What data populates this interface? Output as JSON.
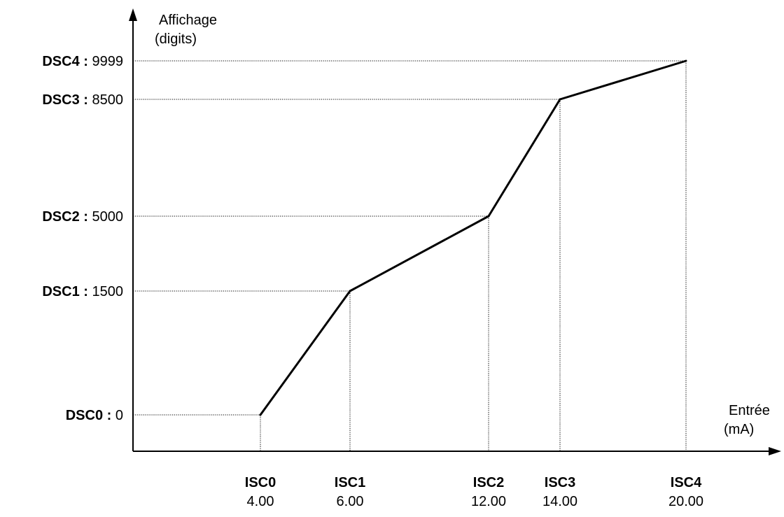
{
  "chart_data": {
    "type": "line",
    "ylabel": [
      "Affichage",
      "(digits)"
    ],
    "xlabel": [
      "Entrée",
      "(mA)"
    ],
    "points": [
      {
        "xname": "ISC0",
        "x": 4.0,
        "xtext": "4.00",
        "yname": "DSC0",
        "y": 0,
        "ytext": "0"
      },
      {
        "xname": "ISC1",
        "x": 6.0,
        "xtext": "6.00",
        "yname": "DSC1",
        "y": 1500,
        "ytext": "1500"
      },
      {
        "xname": "ISC2",
        "x": 12.0,
        "xtext": "12.00",
        "yname": "DSC2",
        "y": 5000,
        "ytext": "5000"
      },
      {
        "xname": "ISC3",
        "x": 14.0,
        "xtext": "14.00",
        "yname": "DSC3",
        "y": 8500,
        "ytext": "8500"
      },
      {
        "xname": "ISC4",
        "x": 20.0,
        "xtext": "20.00",
        "yname": "DSC4",
        "y": 9999,
        "ytext": "9999"
      }
    ],
    "y_label_separator": " : ",
    "grid": false,
    "guide_lines": "dotted"
  }
}
